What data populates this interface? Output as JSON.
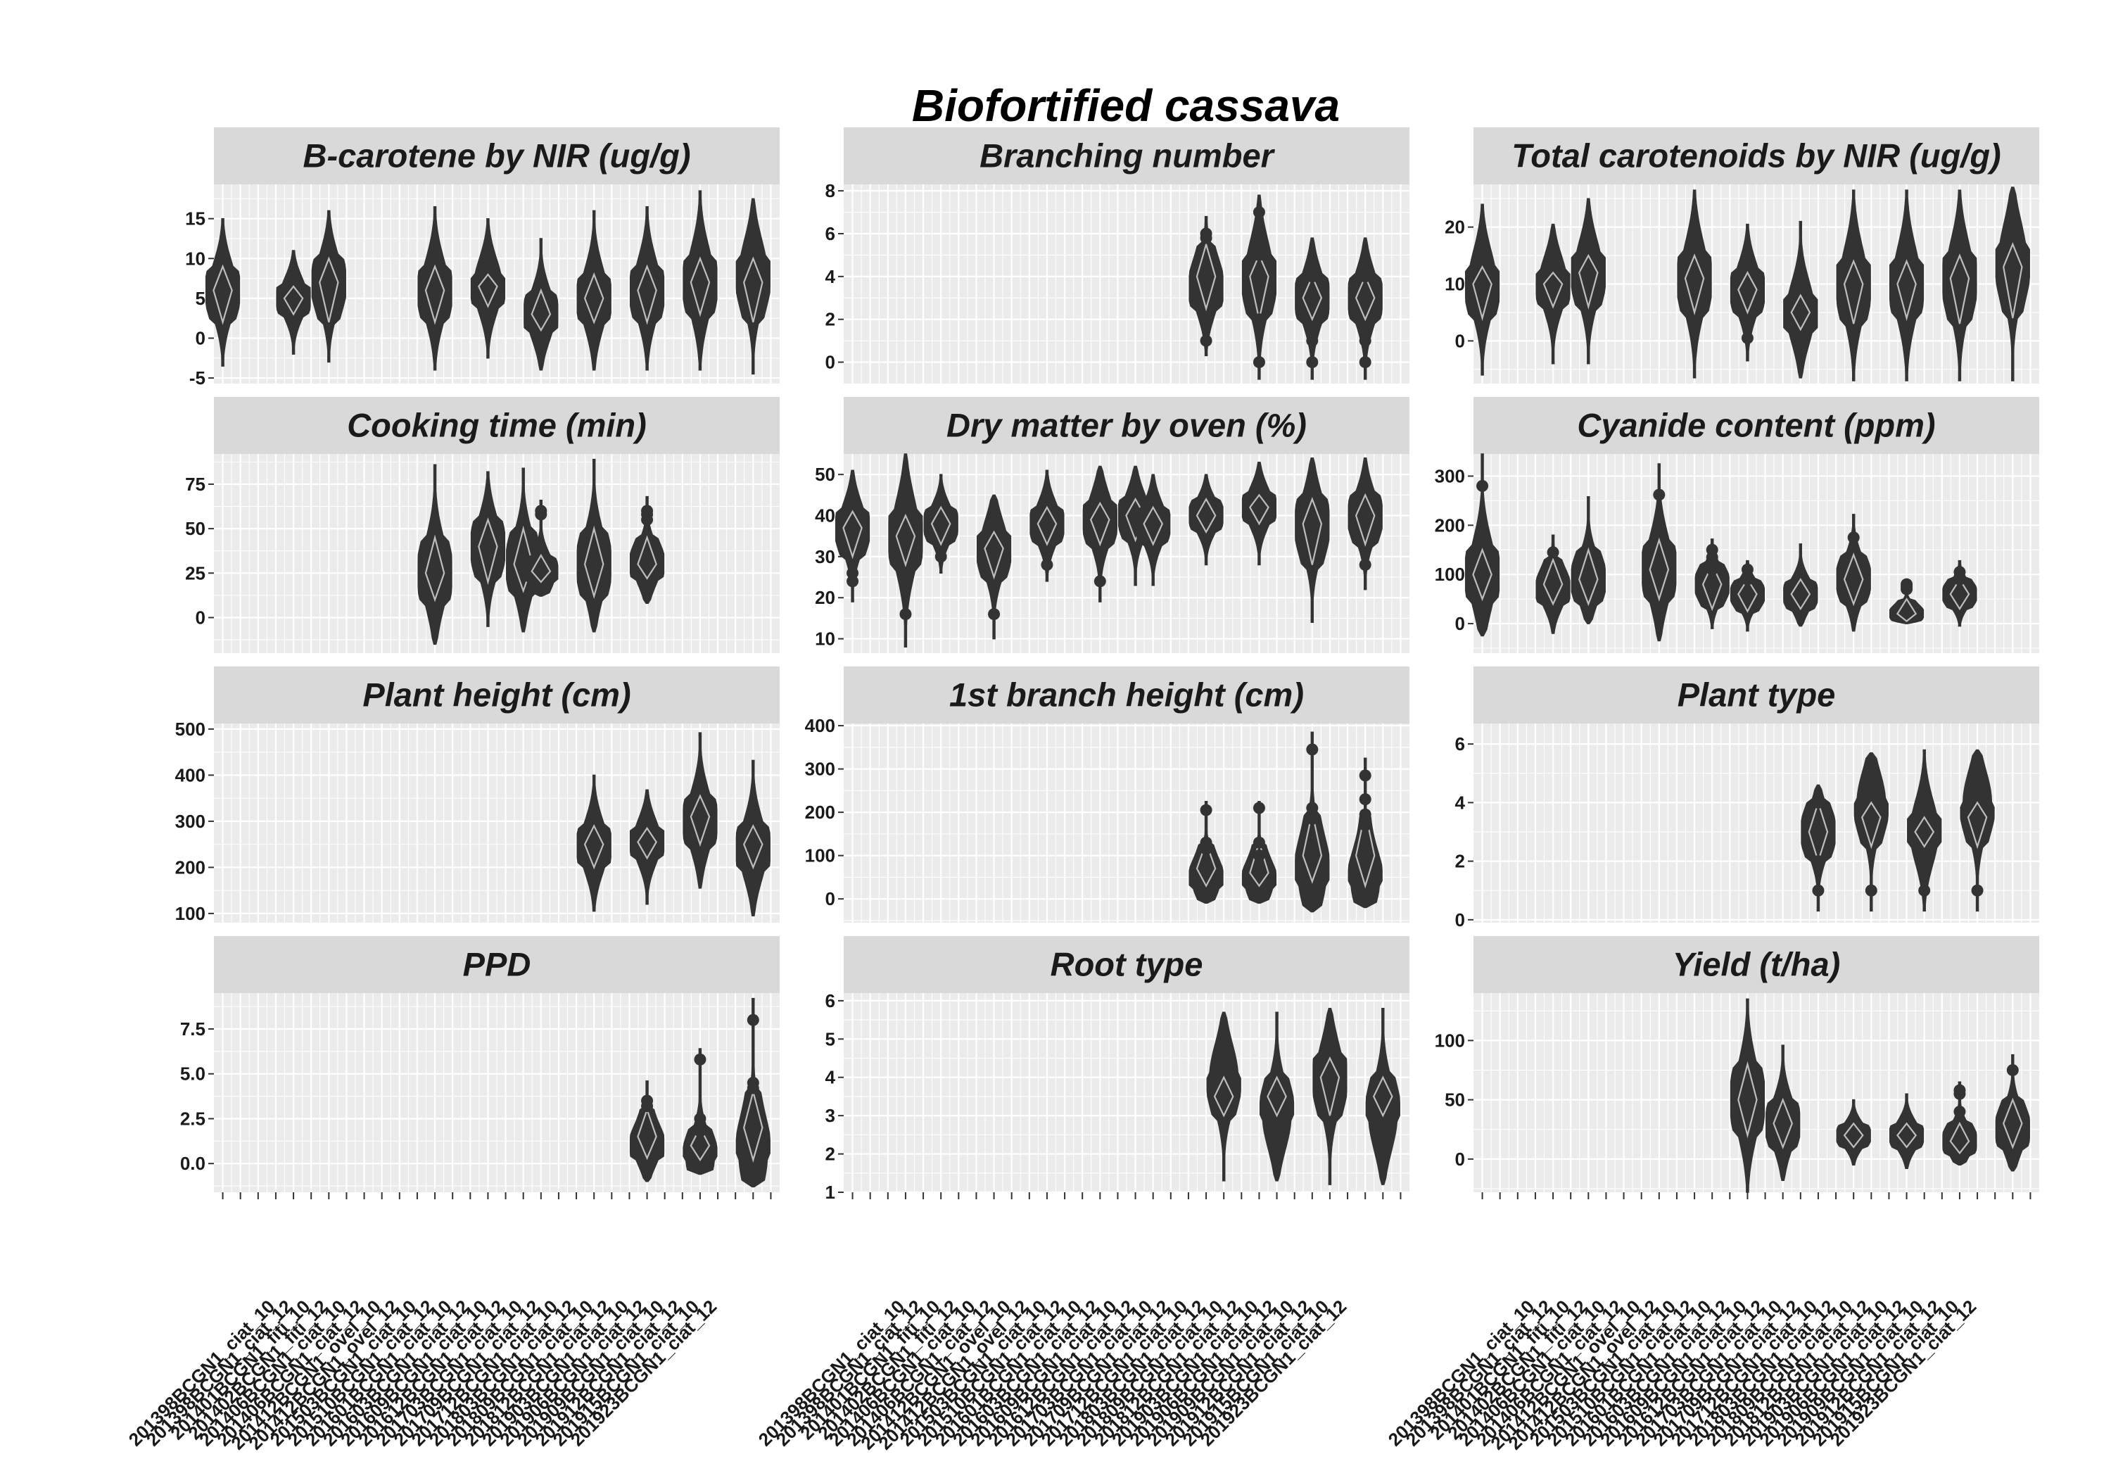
{
  "title": "Biofortified cassava",
  "x_categories": [
    "201398BCGN1_ciat_10",
    "201398BCGN1_ciat_12",
    "201401BCGN1_fiti_10",
    "201402BCGN1_fiti_12",
    "201406BCGN1_ciat_10",
    "201406BCGN1_ciat_12",
    "201412BCGN1_ovel_10",
    "201412BCGN1_ovel_12",
    "201503BCGN1_ciat_10",
    "201510BCGN1_ciat_12",
    "201601BCGN1_ciat_10",
    "201603BCGN1_ciat_12",
    "201609BCGN1_ciat_10",
    "201612BCGN1_ciat_12",
    "201703BCGN1_ciat_10",
    "201709BCGN1_ciat_12",
    "201712BCGN1_ciat_10",
    "201803BCGN1_ciat_12",
    "201809BCGN1_ciat_10",
    "201812BCGN1_ciat_12",
    "201903BCGN1_ciat_10",
    "201906BCGN1_ciat_12",
    "201909BCGN1_ciat_10",
    "201912BCGN1_ciat_12",
    "201915BCGN1_ciat_10",
    "201923BCGN1_ciat_12"
  ],
  "chart_data": [
    {
      "type": "violin",
      "title": "B-carotene by NIR (ug/g)",
      "yticks": [
        -5,
        0,
        5,
        10,
        15
      ],
      "ylim": [
        -5.7,
        19.3
      ],
      "groups": [
        {
          "x": 0,
          "min": -3.5,
          "max": 15.0,
          "q1": 2,
          "med": 6,
          "q3": 9,
          "mode": 6
        },
        {
          "x": 4,
          "min": -2.0,
          "max": 11.0,
          "q1": 3,
          "med": 5,
          "q3": 6.5,
          "mode": 5
        },
        {
          "x": 6,
          "min": -3.0,
          "max": 16.0,
          "q1": 2,
          "med": 7,
          "q3": 10,
          "mode": 7
        },
        {
          "x": 12,
          "min": -4.0,
          "max": 16.5,
          "q1": 2,
          "med": 6,
          "q3": 9,
          "mode": 6
        },
        {
          "x": 15,
          "min": -2.5,
          "max": 15.0,
          "q1": 4,
          "med": 6.5,
          "q3": 8,
          "mode": 6.5
        },
        {
          "x": 18,
          "min": -4.0,
          "max": 12.5,
          "q1": 1,
          "med": 3,
          "q3": 6,
          "mode": 3
        },
        {
          "x": 21,
          "min": -4.0,
          "max": 16.0,
          "q1": 2,
          "med": 5,
          "q3": 8,
          "mode": 5
        },
        {
          "x": 24,
          "min": -4.0,
          "max": 16.5,
          "q1": 2,
          "med": 6,
          "q3": 9,
          "mode": 6
        },
        {
          "x": 27,
          "min": -4.0,
          "max": 18.5,
          "q1": 3,
          "med": 7,
          "q3": 10,
          "mode": 7
        },
        {
          "x": 30,
          "min": -4.5,
          "max": 17.5,
          "q1": 2,
          "med": 7,
          "q3": 10,
          "mode": 8
        }
      ]
    },
    {
      "type": "violin",
      "title": "Branching number",
      "yticks": [
        0,
        2,
        4,
        6,
        8
      ],
      "ylim": [
        -1.0,
        8.3
      ],
      "groups": [
        {
          "x": 20,
          "min": 0.3,
          "max": 6.8,
          "q1": 2.5,
          "med": 4,
          "q3": 5.5,
          "mode": 3.5,
          "points": [
            1,
            6,
            5.8
          ]
        },
        {
          "x": 23,
          "min": -0.8,
          "max": 7.8,
          "q1": 2,
          "med": 4,
          "q3": 5,
          "mode": 4,
          "points": [
            0,
            2,
            7,
            5
          ]
        },
        {
          "x": 26,
          "min": -0.8,
          "max": 5.8,
          "q1": 2,
          "med": 3,
          "q3": 4,
          "mode": 3,
          "points": [
            0,
            1,
            4
          ]
        },
        {
          "x": 29,
          "min": -0.8,
          "max": 5.8,
          "q1": 2,
          "med": 3,
          "q3": 4,
          "mode": 3,
          "points": [
            0,
            1,
            4
          ]
        }
      ]
    },
    {
      "type": "violin",
      "title": "Total carotenoids by NIR (ug/g)",
      "yticks": [
        0,
        10,
        20
      ],
      "ylim": [
        -7.5,
        27.5
      ],
      "groups": [
        {
          "x": 0,
          "min": -6.0,
          "max": 24.0,
          "q1": 4,
          "med": 10,
          "q3": 13,
          "mode": 10
        },
        {
          "x": 4,
          "min": -4.0,
          "max": 20.5,
          "q1": 6,
          "med": 10,
          "q3": 12,
          "mode": 10
        },
        {
          "x": 6,
          "min": -4.0,
          "max": 25.0,
          "q1": 6,
          "med": 12,
          "q3": 15,
          "mode": 12
        },
        {
          "x": 12,
          "min": -6.5,
          "max": 26.5,
          "q1": 5,
          "med": 11,
          "q3": 15,
          "mode": 11
        },
        {
          "x": 15,
          "min": -3.5,
          "max": 20.5,
          "q1": 5,
          "med": 9,
          "q3": 12,
          "mode": 9,
          "points": [
            0.5
          ]
        },
        {
          "x": 18,
          "min": -6.5,
          "max": 21.0,
          "q1": 2,
          "med": 5,
          "q3": 8,
          "mode": 5
        },
        {
          "x": 21,
          "min": -7.0,
          "max": 26.5,
          "q1": 3,
          "med": 10,
          "q3": 14,
          "mode": 10
        },
        {
          "x": 24,
          "min": -7.0,
          "max": 26.5,
          "q1": 4,
          "med": 10,
          "q3": 14,
          "mode": 10
        },
        {
          "x": 27,
          "min": -7.0,
          "max": 26.5,
          "q1": 3,
          "med": 11,
          "q3": 15,
          "mode": 11
        },
        {
          "x": 30,
          "min": -7.0,
          "max": 27.0,
          "q1": 4,
          "med": 13,
          "q3": 17,
          "mode": 14
        }
      ]
    },
    {
      "type": "violin",
      "title": "Cooking time (min)",
      "yticks": [
        0,
        25,
        50,
        75
      ],
      "ylim": [
        -20,
        92
      ],
      "groups": [
        {
          "x": 12,
          "min": -15,
          "max": 86,
          "q1": 10,
          "med": 25,
          "q3": 45,
          "mode": 25
        },
        {
          "x": 15,
          "min": -5,
          "max": 82,
          "q1": 20,
          "med": 40,
          "q3": 55,
          "mode": 40
        },
        {
          "x": 17,
          "min": -8,
          "max": 84,
          "q1": 15,
          "med": 30,
          "q3": 50,
          "mode": 30
        },
        {
          "x": 18,
          "min": 12,
          "max": 66,
          "q1": 20,
          "med": 26,
          "q3": 35,
          "mode": 25,
          "points": [
            60,
            58
          ]
        },
        {
          "x": 21,
          "min": -8,
          "max": 89,
          "q1": 12,
          "med": 30,
          "q3": 50,
          "mode": 30
        },
        {
          "x": 24,
          "min": 8,
          "max": 68,
          "q1": 22,
          "med": 30,
          "q3": 45,
          "mode": 30,
          "points": [
            55,
            60,
            58
          ]
        }
      ]
    },
    {
      "type": "violin",
      "title": "Dry matter by oven (%)",
      "yticks": [
        10,
        20,
        30,
        40,
        50
      ],
      "ylim": [
        6.5,
        55
      ],
      "groups": [
        {
          "x": 0,
          "min": 19,
          "max": 51,
          "q1": 30,
          "med": 37,
          "q3": 41,
          "mode": 37,
          "points": [
            26,
            24
          ]
        },
        {
          "x": 3,
          "min": 8,
          "max": 55,
          "q1": 28,
          "med": 35,
          "q3": 40,
          "mode": 35,
          "points": [
            16
          ]
        },
        {
          "x": 5,
          "min": 26,
          "max": 50,
          "q1": 33,
          "med": 38,
          "q3": 42,
          "mode": 38,
          "points": [
            30
          ]
        },
        {
          "x": 8,
          "min": 10,
          "max": 45,
          "q1": 25,
          "med": 32,
          "q3": 36,
          "mode": 32,
          "points": [
            16
          ]
        },
        {
          "x": 11,
          "min": 24,
          "max": 51,
          "q1": 33,
          "med": 38,
          "q3": 42,
          "mode": 38,
          "points": [
            28
          ]
        },
        {
          "x": 14,
          "min": 19,
          "max": 52,
          "q1": 33,
          "med": 39,
          "q3": 43,
          "mode": 39,
          "points": [
            24
          ]
        },
        {
          "x": 16,
          "min": 23,
          "max": 52,
          "q1": 34,
          "med": 40,
          "q3": 44,
          "mode": 40
        },
        {
          "x": 17,
          "min": 23,
          "max": 50,
          "q1": 33,
          "med": 38,
          "q3": 42,
          "mode": 38
        },
        {
          "x": 20,
          "min": 28,
          "max": 50,
          "q1": 36,
          "med": 40,
          "q3": 44,
          "mode": 40
        },
        {
          "x": 23,
          "min": 28,
          "max": 53,
          "q1": 38,
          "med": 42,
          "q3": 45,
          "mode": 42
        },
        {
          "x": 26,
          "min": 14,
          "max": 54,
          "q1": 28,
          "med": 38,
          "q3": 44,
          "mode": 38
        },
        {
          "x": 29,
          "min": 22,
          "max": 54,
          "q1": 33,
          "med": 40,
          "q3": 45,
          "mode": 40,
          "points": [
            28
          ]
        }
      ]
    },
    {
      "type": "violin",
      "title": "Cyanide content (ppm)",
      "yticks": [
        0,
        100,
        200,
        300
      ],
      "ylim": [
        -60,
        345
      ],
      "groups": [
        {
          "x": 0,
          "min": -25,
          "max": 345,
          "q1": 50,
          "med": 100,
          "q3": 150,
          "mode": 100,
          "points": [
            280
          ]
        },
        {
          "x": 4,
          "min": -20,
          "max": 180,
          "q1": 40,
          "med": 80,
          "q3": 130,
          "mode": 70,
          "points": [
            145
          ]
        },
        {
          "x": 6,
          "min": 0,
          "max": 258,
          "q1": 40,
          "med": 90,
          "q3": 150,
          "mode": 90
        },
        {
          "x": 10,
          "min": -35,
          "max": 325,
          "q1": 50,
          "med": 110,
          "q3": 170,
          "mode": 110,
          "points": [
            262
          ]
        },
        {
          "x": 13,
          "min": -10,
          "max": 172,
          "q1": 30,
          "med": 80,
          "q3": 120,
          "mode": 80,
          "points": [
            150,
            135,
            115,
            110
          ]
        },
        {
          "x": 15,
          "min": -15,
          "max": 128,
          "q1": 25,
          "med": 60,
          "q3": 90,
          "mode": 60,
          "points": [
            110,
            95,
            90
          ]
        },
        {
          "x": 18,
          "min": -5,
          "max": 162,
          "q1": 30,
          "med": 60,
          "q3": 90,
          "mode": 60
        },
        {
          "x": 21,
          "min": -15,
          "max": 222,
          "q1": 40,
          "med": 90,
          "q3": 140,
          "mode": 90,
          "points": [
            175
          ]
        },
        {
          "x": 24,
          "min": 0,
          "max": 88,
          "q1": 5,
          "med": 20,
          "q3": 50,
          "mode": 20,
          "points": [
            75,
            80,
            70
          ]
        },
        {
          "x": 27,
          "min": -5,
          "max": 128,
          "q1": 30,
          "med": 60,
          "q3": 90,
          "mode": 60,
          "points": [
            105,
            95,
            90
          ]
        }
      ]
    },
    {
      "type": "violin",
      "title": "Plant height (cm)",
      "yticks": [
        100,
        200,
        300,
        400,
        500
      ],
      "ylim": [
        80,
        512
      ],
      "groups": [
        {
          "x": 21,
          "min": 105,
          "max": 400,
          "q1": 200,
          "med": 250,
          "q3": 290,
          "mode": 245
        },
        {
          "x": 24,
          "min": 120,
          "max": 368,
          "q1": 220,
          "med": 255,
          "q3": 285,
          "mode": 255
        },
        {
          "x": 27,
          "min": 155,
          "max": 492,
          "q1": 250,
          "med": 310,
          "q3": 355,
          "mode": 300
        },
        {
          "x": 30,
          "min": 95,
          "max": 432,
          "q1": 200,
          "med": 250,
          "q3": 290,
          "mode": 240
        }
      ]
    },
    {
      "type": "violin",
      "title": "1st branch height (cm)",
      "yticks": [
        0,
        100,
        200,
        300,
        400
      ],
      "ylim": [
        -55,
        405
      ],
      "groups": [
        {
          "x": 20,
          "min": -10,
          "max": 225,
          "q1": 30,
          "med": 70,
          "q3": 130,
          "mode": 45,
          "points": [
            205,
            130,
            115
          ]
        },
        {
          "x": 23,
          "min": -10,
          "max": 225,
          "q1": 30,
          "med": 60,
          "q3": 130,
          "mode": 40,
          "points": [
            210,
            130,
            100
          ]
        },
        {
          "x": 26,
          "min": -30,
          "max": 385,
          "q1": 40,
          "med": 100,
          "q3": 200,
          "mode": 60,
          "points": [
            345,
            210,
            185
          ]
        },
        {
          "x": 29,
          "min": -20,
          "max": 325,
          "q1": 30,
          "med": 100,
          "q3": 200,
          "mode": 40,
          "points": [
            285,
            230,
            195,
            170
          ]
        }
      ]
    },
    {
      "type": "violin",
      "title": "Plant type",
      "yticks": [
        0,
        2,
        4,
        6
      ],
      "ylim": [
        -0.1,
        6.7
      ],
      "groups": [
        {
          "x": 19,
          "min": 0.3,
          "max": 4.6,
          "q1": 2,
          "med": 3,
          "q3": 4,
          "mode": 3,
          "points": [
            1,
            2,
            4
          ]
        },
        {
          "x": 22,
          "min": 0.3,
          "max": 5.7,
          "q1": 2.5,
          "med": 3.5,
          "q3": 4,
          "mode": 4,
          "points": [
            1
          ]
        },
        {
          "x": 25,
          "min": 0.3,
          "max": 5.8,
          "q1": 2.5,
          "med": 3,
          "q3": 3.5,
          "mode": 3,
          "points": [
            1
          ]
        },
        {
          "x": 28,
          "min": 0.3,
          "max": 5.8,
          "q1": 2.5,
          "med": 3.5,
          "q3": 4,
          "mode": 4,
          "points": [
            1
          ]
        }
      ]
    },
    {
      "type": "violin",
      "title": "PPD",
      "yticks": [
        0.0,
        2.5,
        5.0,
        7.5
      ],
      "yticklabels": [
        "0.0",
        "2.5",
        "5.0",
        "7.5"
      ],
      "ylim": [
        -1.6,
        9.5
      ],
      "groups": [
        {
          "x": 24,
          "min": -1.0,
          "max": 4.6,
          "q1": 0.3,
          "med": 1.5,
          "q3": 3,
          "mode": 1,
          "points": [
            3.5,
            3.2
          ]
        },
        {
          "x": 27,
          "min": -0.6,
          "max": 6.4,
          "q1": 0.2,
          "med": 1,
          "q3": 2,
          "mode": 0.3,
          "points": [
            5.8,
            2.5,
            1.8
          ]
        },
        {
          "x": 30,
          "min": -1.3,
          "max": 9.2,
          "q1": 0.2,
          "med": 2,
          "q3": 4,
          "mode": 0.5,
          "points": [
            8.0,
            4.5,
            4.2
          ]
        }
      ]
    },
    {
      "type": "violin",
      "title": "Root type",
      "yticks": [
        1,
        2,
        3,
        4,
        5,
        6
      ],
      "ylim": [
        1.0,
        6.2
      ],
      "groups": [
        {
          "x": 21,
          "min": 1.3,
          "max": 5.7,
          "q1": 3,
          "med": 3.5,
          "q3": 4,
          "mode": 4
        },
        {
          "x": 24,
          "min": 1.3,
          "max": 5.7,
          "q1": 3,
          "med": 3.5,
          "q3": 4,
          "mode": 3
        },
        {
          "x": 27,
          "min": 1.2,
          "max": 5.8,
          "q1": 3,
          "med": 4,
          "q3": 4.5,
          "mode": 4
        },
        {
          "x": 30,
          "min": 1.2,
          "max": 5.8,
          "q1": 3,
          "med": 3.5,
          "q3": 4,
          "mode": 3
        }
      ]
    },
    {
      "type": "violin",
      "title": "Yield (t/ha)",
      "yticks": [
        0,
        50,
        100
      ],
      "ylim": [
        -28,
        140
      ],
      "groups": [
        {
          "x": 15,
          "min": -28,
          "max": 135,
          "q1": 20,
          "med": 50,
          "q3": 80,
          "mode": 50
        },
        {
          "x": 17,
          "min": -18,
          "max": 96,
          "q1": 10,
          "med": 30,
          "q3": 50,
          "mode": 30
        },
        {
          "x": 21,
          "min": -5,
          "max": 50,
          "q1": 10,
          "med": 20,
          "q3": 30,
          "mode": 20
        },
        {
          "x": 24,
          "min": -8,
          "max": 55,
          "q1": 10,
          "med": 20,
          "q3": 30,
          "mode": 20
        },
        {
          "x": 27,
          "min": -5,
          "max": 65,
          "q1": 5,
          "med": 15,
          "q3": 30,
          "mode": 15,
          "points": [
            58,
            55,
            40
          ]
        },
        {
          "x": 30,
          "min": -10,
          "max": 88,
          "q1": 10,
          "med": 30,
          "q3": 50,
          "mode": 25,
          "points": [
            75
          ]
        }
      ]
    }
  ]
}
